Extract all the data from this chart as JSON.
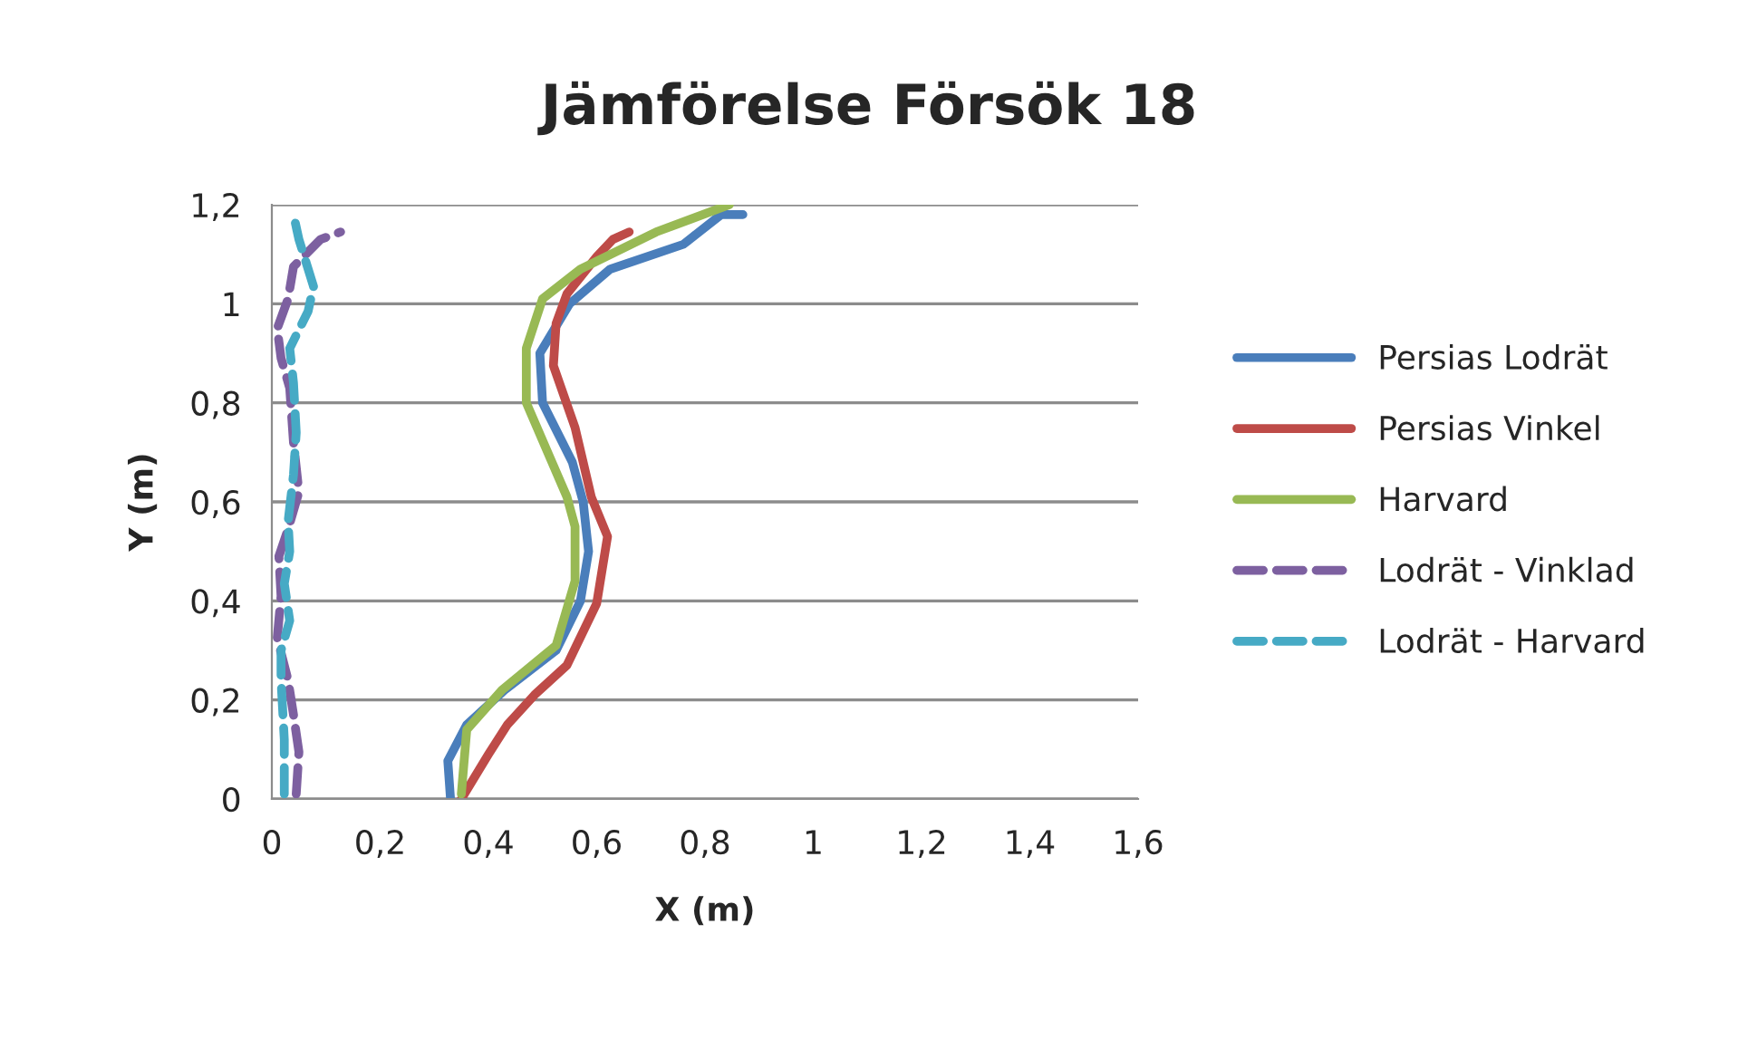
{
  "chart_data": {
    "type": "line",
    "title": "Jämförelse Försök 18",
    "xlabel": "X (m)",
    "ylabel": "Y (m)",
    "xlim": [
      0,
      1.6
    ],
    "ylim": [
      0,
      1.2
    ],
    "xticks": [
      0,
      {
        "value": 0.2,
        "label": "0,2"
      },
      {
        "value": 0.4,
        "label": "0,4"
      },
      {
        "value": 0.6,
        "label": "0,6"
      },
      {
        "value": 0.8,
        "label": "0,8"
      },
      1,
      {
        "value": 1.2,
        "label": "1,2"
      },
      {
        "value": 1.4,
        "label": "1,4"
      },
      {
        "value": 1.6,
        "label": "1,6"
      }
    ],
    "yticks": [
      0,
      {
        "value": 0.2,
        "label": "0,2"
      },
      {
        "value": 0.4,
        "label": "0,4"
      },
      {
        "value": 0.6,
        "label": "0,6"
      },
      {
        "value": 0.8,
        "label": "0,8"
      },
      1,
      {
        "value": 1.2,
        "label": "1,2"
      }
    ],
    "grid": "y",
    "legend": "right",
    "marker": "none",
    "series": [
      {
        "name": "Persias Lodrät",
        "color": "#4a7ebb",
        "line_style": "solid",
        "x": [
          0.33,
          0.325,
          0.36,
          0.43,
          0.525,
          0.57,
          0.585,
          0.575,
          0.555,
          0.5,
          0.495,
          0.55,
          0.625,
          0.76,
          0.83,
          0.87
        ],
        "values": [
          0,
          0.077,
          0.15,
          0.22,
          0.3,
          0.4,
          0.5,
          0.6,
          0.68,
          0.8,
          0.9,
          1.0,
          1.07,
          1.12,
          1.18,
          1.18
        ]
      },
      {
        "name": "Persias Vinkel",
        "color": "#be4b48",
        "line_style": "solid",
        "x": [
          0.35,
          0.4,
          0.435,
          0.485,
          0.545,
          0.6,
          0.62,
          0.59,
          0.56,
          0.52,
          0.525,
          0.545,
          0.6,
          0.63,
          0.66
        ],
        "values": [
          0,
          0.09,
          0.15,
          0.21,
          0.27,
          0.395,
          0.53,
          0.61,
          0.75,
          0.875,
          0.96,
          1.02,
          1.095,
          1.13,
          1.145
        ]
      },
      {
        "name": "Harvard",
        "color": "#98b954",
        "line_style": "solid",
        "x": [
          0.35,
          0.36,
          0.425,
          0.525,
          0.56,
          0.56,
          0.545,
          0.47,
          0.47,
          0.5,
          0.57,
          0.71,
          0.845
        ],
        "values": [
          0.01,
          0.14,
          0.22,
          0.31,
          0.44,
          0.55,
          0.61,
          0.8,
          0.91,
          1.01,
          1.07,
          1.145,
          1.2
        ]
      },
      {
        "name": "Lodrät - Vinklad",
        "color": "#7d60a0",
        "line_style": "dashed",
        "x": [
          0.045,
          0.05,
          0.04,
          0.03,
          0.01,
          0.017,
          0.013,
          0.03,
          0.05,
          0.04,
          0.033,
          0.017,
          0.01,
          0.03,
          0.04,
          0.09,
          0.127
        ],
        "values": [
          0.01,
          0.095,
          0.17,
          0.24,
          0.325,
          0.41,
          0.49,
          0.545,
          0.62,
          0.72,
          0.83,
          0.89,
          0.95,
          1.01,
          1.075,
          1.13,
          1.145
        ]
      },
      {
        "name": "Lodrät - Harvard",
        "color": "#46aac5",
        "line_style": "dashed",
        "x": [
          0.023,
          0.023,
          0.017,
          0.017,
          0.033,
          0.023,
          0.033,
          0.03,
          0.04,
          0.045,
          0.04,
          0.033,
          0.067,
          0.077,
          0.06,
          0.05,
          0.04
        ],
        "values": [
          0.01,
          0.12,
          0.24,
          0.3,
          0.36,
          0.435,
          0.5,
          0.56,
          0.655,
          0.74,
          0.84,
          0.91,
          0.985,
          1.035,
          1.095,
          1.13,
          1.18
        ]
      }
    ]
  }
}
